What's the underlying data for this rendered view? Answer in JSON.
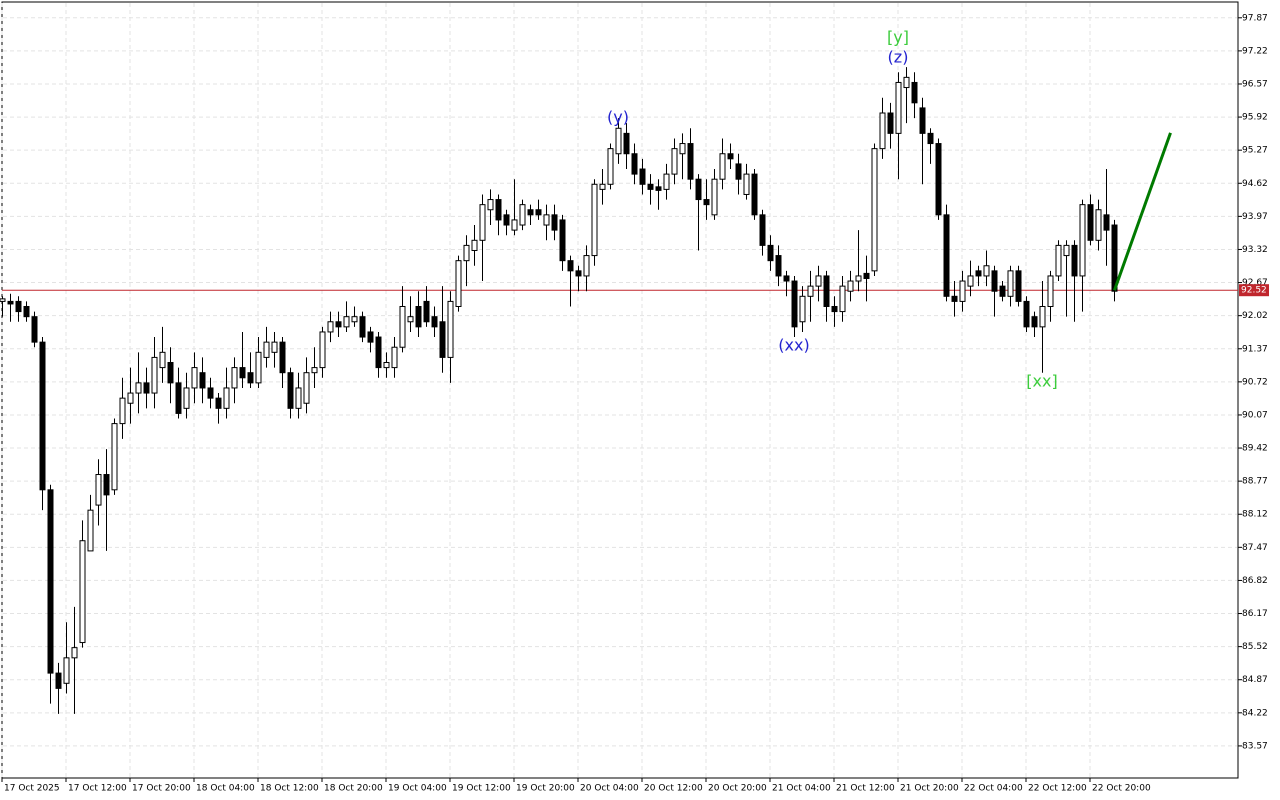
{
  "chart_data": {
    "type": "candlestick",
    "categories": [
      "17 Oct 2025",
      null,
      null,
      null,
      null,
      null,
      null,
      null,
      "17 Oct 12:00",
      null,
      null,
      null,
      null,
      null,
      null,
      null,
      "17 Oct 20:00",
      null,
      null,
      null,
      null,
      null,
      null,
      null,
      "18 Oct 04:00",
      null,
      null,
      null,
      null,
      null,
      null,
      null,
      "18 Oct 12:00",
      null,
      null,
      null,
      null,
      null,
      null,
      null,
      "18 Oct 20:00",
      null,
      null,
      null,
      null,
      null,
      null,
      null,
      "19 Oct 04:00",
      null,
      null,
      null,
      null,
      null,
      null,
      null,
      "19 Oct 12:00",
      null,
      null,
      null,
      null,
      null,
      null,
      null,
      "19 Oct 20:00",
      null,
      null,
      null,
      null,
      null,
      null,
      null,
      "20 Oct 04:00",
      null,
      null,
      null,
      null,
      null,
      null,
      null,
      "20 Oct 12:00",
      null,
      null,
      null,
      null,
      null,
      null,
      null,
      "20 Oct 20:00",
      null,
      null,
      null,
      null,
      null,
      null,
      null,
      "21 Oct 04:00",
      null,
      null,
      null,
      null,
      null,
      null,
      null,
      "21 Oct 12:00",
      null,
      null,
      null,
      null,
      null,
      null,
      null,
      "21 Oct 20:00",
      null,
      null,
      null,
      null,
      null,
      null,
      null,
      "22 Oct 04:00",
      null,
      null,
      null,
      null,
      null,
      null,
      null,
      "22 Oct 12:00",
      null,
      null,
      null,
      null,
      null,
      null,
      null,
      "22 Oct 20:00",
      null,
      null,
      null
    ],
    "open": [
      92.3,
      92.3,
      92.3,
      92.2,
      92.0,
      91.5,
      88.6,
      85.0,
      84.8,
      85.3,
      85.6,
      87.4,
      88.3,
      88.9,
      88.6,
      89.9,
      90.3,
      90.5,
      90.7,
      90.5,
      91.0,
      91.1,
      90.7,
      90.2,
      90.6,
      90.9,
      90.6,
      90.4,
      90.2,
      90.6,
      91.0,
      90.9,
      90.7,
      91.2,
      91.3,
      91.5,
      90.9,
      90.2,
      90.3,
      90.9,
      91.0,
      91.7,
      91.9,
      91.8,
      91.9,
      92.0,
      91.7,
      91.6,
      91.0,
      91.0,
      91.4,
      91.9,
      92.2,
      92.3,
      92.0,
      91.9,
      91.2,
      92.2,
      93.1,
      93.3,
      93.5,
      94.1,
      94.3,
      94.0,
      93.7,
      93.8,
      94.1,
      94.1,
      93.8,
      94.0,
      93.9,
      93.1,
      92.9,
      92.8,
      93.2,
      94.5,
      94.6,
      95.2,
      95.6,
      95.2,
      94.9,
      94.6,
      94.55,
      94.5,
      94.8,
      95.2,
      95.4,
      94.7,
      94.3,
      94.0,
      94.7,
      95.2,
      95.0,
      94.4,
      94.8,
      94.0,
      93.4,
      93.2,
      92.8,
      92.7,
      91.9,
      92.4,
      92.6,
      92.8,
      92.2,
      92.1,
      92.5,
      92.7,
      92.85,
      92.9,
      95.3,
      96.0,
      95.6,
      96.5,
      96.6,
      96.1,
      95.6,
      95.4,
      94.0,
      92.4,
      92.3,
      92.6,
      92.9,
      92.8,
      92.9,
      92.6,
      92.4,
      92.9,
      92.3,
      92.0,
      91.8,
      92.2,
      92.8,
      93.2,
      93.4,
      92.8,
      94.2,
      93.5,
      94.0,
      93.8
    ],
    "high": [
      92.4,
      92.45,
      92.4,
      92.3,
      92.1,
      91.6,
      88.7,
      85.2,
      86.0,
      86.3,
      88.0,
      88.5,
      89.2,
      89.4,
      90.0,
      90.8,
      91.0,
      91.3,
      91.0,
      91.6,
      91.8,
      91.4,
      91.0,
      90.9,
      91.3,
      91.2,
      90.8,
      90.5,
      91.0,
      91.2,
      91.7,
      91.3,
      91.6,
      91.8,
      91.7,
      91.6,
      91.0,
      90.9,
      91.2,
      91.4,
      91.8,
      92.1,
      92.1,
      92.3,
      92.2,
      92.1,
      91.8,
      91.7,
      91.3,
      91.6,
      92.6,
      92.4,
      92.5,
      92.6,
      92.2,
      92.6,
      92.5,
      93.2,
      93.6,
      93.8,
      94.4,
      94.5,
      94.4,
      94.1,
      94.7,
      94.3,
      94.2,
      94.3,
      94.2,
      94.2,
      94.0,
      93.2,
      93.0,
      93.4,
      94.7,
      94.9,
      95.4,
      95.9,
      95.8,
      95.4,
      95.1,
      94.8,
      94.7,
      95.0,
      95.5,
      95.6,
      95.7,
      94.8,
      94.7,
      94.9,
      95.5,
      95.4,
      95.2,
      95.0,
      94.9,
      94.1,
      93.6,
      93.4,
      92.9,
      92.8,
      92.6,
      92.9,
      93.0,
      92.9,
      92.4,
      92.8,
      92.9,
      93.7,
      93.2,
      95.4,
      96.3,
      96.2,
      96.8,
      96.9,
      96.8,
      96.3,
      95.7,
      95.5,
      94.2,
      92.7,
      92.9,
      93.1,
      93.0,
      93.3,
      93.0,
      92.7,
      93.0,
      93.0,
      92.4,
      92.1,
      92.7,
      92.9,
      93.5,
      93.5,
      93.5,
      94.3,
      94.4,
      94.3,
      94.9,
      93.9
    ],
    "low": [
      92.0,
      91.9,
      91.9,
      91.9,
      91.4,
      88.2,
      84.4,
      84.2,
      84.6,
      84.2,
      85.5,
      87.4,
      87.9,
      87.4,
      88.5,
      89.6,
      89.9,
      90.1,
      90.2,
      90.2,
      90.7,
      90.3,
      90.0,
      90.0,
      90.3,
      90.3,
      90.2,
      89.9,
      90.0,
      90.3,
      90.6,
      90.6,
      90.6,
      91.0,
      91.0,
      90.6,
      90.0,
      90.0,
      90.1,
      90.6,
      90.8,
      91.5,
      91.6,
      91.7,
      91.8,
      91.5,
      91.3,
      90.8,
      90.8,
      90.8,
      91.3,
      91.7,
      91.6,
      91.8,
      91.6,
      90.9,
      90.7,
      92.1,
      92.6,
      93.0,
      92.7,
      93.8,
      93.6,
      93.6,
      93.6,
      93.7,
      93.8,
      93.9,
      93.5,
      93.5,
      92.9,
      92.2,
      92.5,
      92.5,
      93.0,
      94.2,
      94.5,
      95.0,
      94.9,
      94.6,
      94.4,
      94.2,
      94.1,
      94.3,
      94.6,
      94.7,
      94.5,
      93.3,
      93.9,
      93.9,
      94.5,
      94.9,
      94.4,
      94.3,
      93.9,
      93.2,
      92.9,
      92.6,
      92.4,
      91.6,
      91.7,
      91.9,
      92.3,
      91.9,
      91.8,
      91.9,
      92.3,
      92.5,
      92.3,
      92.8,
      95.1,
      95.3,
      94.7,
      95.8,
      95.9,
      94.6,
      95.0,
      93.9,
      92.3,
      92.0,
      92.1,
      92.4,
      92.6,
      92.6,
      92.0,
      92.3,
      92.2,
      92.2,
      91.7,
      91.6,
      90.9,
      91.9,
      92.7,
      92.0,
      91.9,
      92.1,
      93.4,
      93.3,
      93.0,
      92.3
    ],
    "close": [
      92.35,
      92.25,
      92.1,
      92.0,
      91.5,
      88.6,
      85.0,
      84.7,
      85.3,
      85.5,
      87.6,
      88.2,
      88.9,
      88.5,
      89.9,
      90.4,
      90.5,
      90.7,
      90.5,
      91.2,
      91.3,
      90.7,
      90.1,
      90.6,
      91.0,
      90.6,
      90.4,
      90.2,
      90.6,
      91.0,
      90.8,
      90.7,
      91.3,
      91.5,
      91.5,
      90.9,
      90.2,
      90.6,
      90.9,
      91.0,
      91.7,
      91.9,
      91.8,
      92.0,
      92.0,
      91.6,
      91.5,
      91.0,
      91.1,
      91.4,
      92.2,
      92.0,
      91.8,
      91.9,
      91.8,
      91.2,
      92.3,
      93.1,
      93.4,
      93.5,
      94.2,
      94.3,
      93.9,
      93.8,
      93.9,
      94.2,
      94.0,
      94.0,
      94.0,
      93.7,
      93.1,
      92.9,
      92.8,
      93.2,
      94.6,
      94.6,
      95.3,
      95.7,
      95.2,
      94.8,
      94.6,
      94.5,
      94.48,
      94.8,
      95.3,
      95.4,
      94.7,
      94.3,
      94.2,
      94.7,
      95.2,
      95.1,
      94.7,
      94.8,
      94.0,
      93.4,
      93.1,
      92.8,
      92.7,
      91.8,
      92.4,
      92.6,
      92.8,
      92.2,
      92.1,
      92.6,
      92.7,
      92.8,
      92.75,
      95.3,
      96.0,
      95.6,
      96.6,
      96.7,
      96.2,
      95.6,
      95.4,
      94.0,
      92.4,
      92.3,
      92.7,
      92.8,
      92.8,
      93.0,
      92.5,
      92.4,
      92.9,
      92.3,
      91.8,
      91.8,
      92.2,
      92.8,
      93.4,
      93.4,
      92.8,
      94.2,
      93.5,
      94.1,
      93.7,
      92.5
    ],
    "ylim": [
      82.94,
      98.18
    ],
    "yticks": [
      97.87,
      97.22,
      96.57,
      95.92,
      95.27,
      94.62,
      93.97,
      93.32,
      92.67,
      92.02,
      91.37,
      90.72,
      90.07,
      89.42,
      88.77,
      88.12,
      87.47,
      86.82,
      86.17,
      85.52,
      84.87,
      84.22,
      83.57
    ],
    "grid": true,
    "current_price": 92.52,
    "current_price_color": "#c0262d",
    "forecast": {
      "color": "#007a00",
      "values": [
        92.52,
        95.61
      ]
    },
    "annotations": [
      {
        "text": "(y)",
        "color": "#2424d0"
      },
      {
        "text": "[y]",
        "color": "#3ccc3c"
      },
      {
        "text": "(z)",
        "color": "#2424d0"
      },
      {
        "text": "(xx)",
        "color": "#2424d0"
      },
      {
        "text": "[xx]",
        "color": "#3ccc3c"
      }
    ]
  }
}
